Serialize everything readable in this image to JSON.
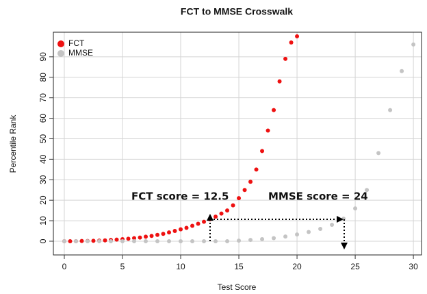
{
  "chart_data": {
    "type": "scatter",
    "title": "FCT to MMSE Crosswalk",
    "x_label": "Test Score",
    "y_label": "Percentile Rank",
    "xlim": [
      -0.94,
      30.7
    ],
    "ylim": [
      -6.7,
      102
    ],
    "xticks": [
      0,
      5,
      10,
      15,
      20,
      25,
      30
    ],
    "yticks": [
      0,
      10,
      20,
      30,
      40,
      50,
      60,
      70,
      80,
      90
    ],
    "grid": true,
    "legend": "top-left",
    "annotations": [
      "FCT score = 12.5",
      "MMSE score = 24"
    ],
    "series": [
      {
        "name": "FCT",
        "color": "#ee1111",
        "x": [
          0,
          0.5,
          1,
          1.5,
          2,
          2.5,
          3,
          3.5,
          4,
          4.5,
          5,
          5.5,
          6,
          6.5,
          7,
          7.5,
          8,
          8.5,
          9,
          9.5,
          10,
          10.5,
          11,
          11.5,
          12,
          12.5,
          13,
          13.5,
          14,
          14.5,
          15,
          15.5,
          16,
          16.5,
          17,
          17.5,
          18,
          18.5,
          19,
          19.5,
          20
        ],
        "values": [
          0,
          0,
          0,
          0.1,
          0.1,
          0.2,
          0.3,
          0.4,
          0.6,
          0.8,
          1,
          1.2,
          1.5,
          1.8,
          2.2,
          2.6,
          3.1,
          3.6,
          4.3,
          5,
          5.8,
          6.5,
          7.5,
          8.5,
          9.5,
          10.7,
          12,
          13.5,
          15,
          17.5,
          21,
          25,
          29,
          35,
          44,
          54,
          64,
          78,
          89,
          97,
          100
        ]
      },
      {
        "name": "MMSE",
        "color": "#c4c4c4",
        "x": [
          0,
          1,
          2,
          3,
          4,
          5,
          6,
          7,
          8,
          9,
          10,
          11,
          12,
          13,
          14,
          15,
          16,
          17,
          18,
          19,
          20,
          21,
          22,
          23,
          24,
          25,
          26,
          27,
          28,
          29,
          30
        ],
        "values": [
          0,
          0,
          0,
          0,
          0,
          0,
          0,
          0,
          0,
          0,
          0,
          0,
          0,
          0,
          0,
          0.3,
          0.6,
          1,
          1.5,
          2.3,
          3.3,
          4.5,
          6,
          8,
          11,
          16,
          25,
          43,
          64,
          83,
          96
        ]
      }
    ]
  }
}
